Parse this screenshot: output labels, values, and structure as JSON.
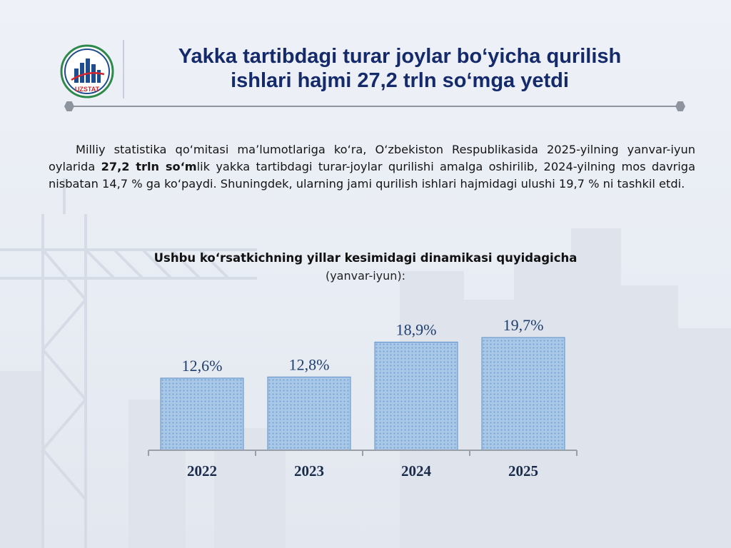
{
  "logo": {
    "text": "UZSTAT",
    "icon": "uzstat-logo-icon"
  },
  "header": {
    "title_line1": "Yakka tartibdagi turar joylar bo‘yicha qurilish",
    "title_line2": "ishlari hajmi 27,2 trln so‘mga yetdi"
  },
  "paragraph": {
    "part1": "Milliy statistika qo‘mitasi ma’lumotlariga ko‘ra, O‘zbekiston Respublikasida 2025-yilning yanvar-iyun oylarida ",
    "bold": "27,2 trln so‘m",
    "part2": "lik yakka tartibdagi turar-joylar qurilishi amalga oshirilib, 2024-yilning mos davriga nisbatan 14,7 % ga ko‘paydi. Shuningdek, ularning jami qurilish ishlari hajmidagi ulushi 19,7 % ni tashkil etdi."
  },
  "chart_data": {
    "type": "bar",
    "title": "Ushbu ko‘rsatkichning yillar kesimidagi dinamikasi quyidagicha",
    "subtitle": "(yanvar-iyun):",
    "categories": [
      "2022",
      "2023",
      "2024",
      "2025"
    ],
    "values": [
      12.6,
      12.8,
      18.9,
      19.7
    ],
    "labels": [
      "12,6%",
      "12,8%",
      "18,9%",
      "19,7%"
    ],
    "ylim": [
      0,
      25
    ],
    "grid": false,
    "bar_color": "#a9c8e8",
    "pattern_color": "#6f9fd2"
  }
}
